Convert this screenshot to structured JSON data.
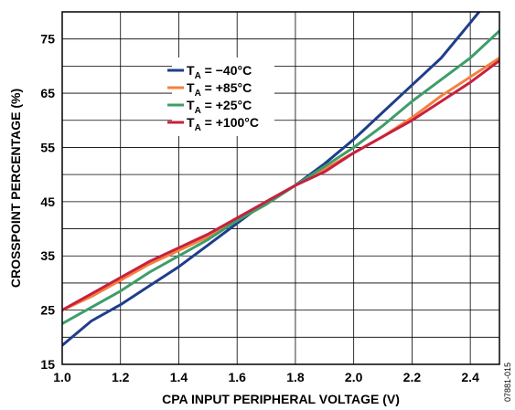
{
  "chart_data": {
    "type": "line",
    "xlabel": "CPA INPUT PERIPHERAL VOLTAGE (V)",
    "ylabel": "CROSSPOINT PERCENTAGE (%)",
    "xlim": [
      1.0,
      2.5
    ],
    "ylim": [
      15,
      80
    ],
    "x_ticks": [
      1.0,
      1.2,
      1.4,
      1.6,
      1.8,
      2.0,
      2.2,
      2.4
    ],
    "x_tick_labels": [
      "1.0",
      "1.2",
      "1.4",
      "1.6",
      "1.8",
      "2.0",
      "2.2",
      "2.4"
    ],
    "y_ticks": [
      15,
      25,
      35,
      45,
      55,
      65,
      75
    ],
    "y_tick_labels": [
      "15",
      "25",
      "35",
      "45",
      "55",
      "65",
      "75"
    ],
    "grid": true,
    "legend_position": "top-left",
    "figure_id": "07881-015",
    "series": [
      {
        "name": "= −40°C",
        "color": "#1f3e8a",
        "x": [
          1.0,
          1.1,
          1.2,
          1.3,
          1.4,
          1.5,
          1.6,
          1.7,
          1.8,
          1.9,
          2.0,
          2.1,
          2.2,
          2.3,
          2.4,
          2.43
        ],
        "y": [
          18.5,
          23.0,
          26.0,
          29.5,
          33.0,
          37.0,
          41.0,
          45.0,
          48.0,
          52.0,
          56.5,
          61.5,
          66.5,
          71.5,
          78.0,
          80.0
        ]
      },
      {
        "name": "= +85°C",
        "color": "#f5803e",
        "x": [
          1.0,
          1.1,
          1.2,
          1.3,
          1.4,
          1.5,
          1.6,
          1.7,
          1.8,
          1.9,
          2.0,
          2.1,
          2.2,
          2.3,
          2.4,
          2.5
        ],
        "y": [
          25.0,
          27.5,
          30.5,
          33.5,
          36.0,
          38.5,
          41.5,
          45.0,
          48.0,
          51.0,
          54.0,
          57.0,
          60.5,
          64.5,
          68.0,
          71.5
        ]
      },
      {
        "name": "= +25°C",
        "color": "#3d9e6a",
        "x": [
          1.0,
          1.1,
          1.2,
          1.3,
          1.4,
          1.5,
          1.6,
          1.7,
          1.8,
          1.9,
          2.0,
          2.1,
          2.2,
          2.3,
          2.4,
          2.5
        ],
        "y": [
          22.5,
          25.5,
          28.5,
          32.0,
          35.0,
          38.0,
          41.5,
          44.5,
          48.0,
          51.5,
          55.0,
          59.0,
          63.5,
          67.5,
          71.5,
          76.5
        ]
      },
      {
        "name": "= +100°C",
        "color": "#c8203f",
        "x": [
          1.0,
          1.1,
          1.2,
          1.3,
          1.4,
          1.5,
          1.6,
          1.7,
          1.8,
          1.9,
          2.0,
          2.1,
          2.2,
          2.3,
          2.4,
          2.5
        ],
        "y": [
          25.0,
          28.0,
          31.0,
          34.0,
          36.5,
          39.0,
          42.0,
          45.0,
          48.0,
          50.5,
          54.0,
          57.0,
          60.0,
          63.5,
          67.0,
          71.0
        ]
      }
    ],
    "legend_symbol": "T",
    "legend_subscript": "A"
  }
}
